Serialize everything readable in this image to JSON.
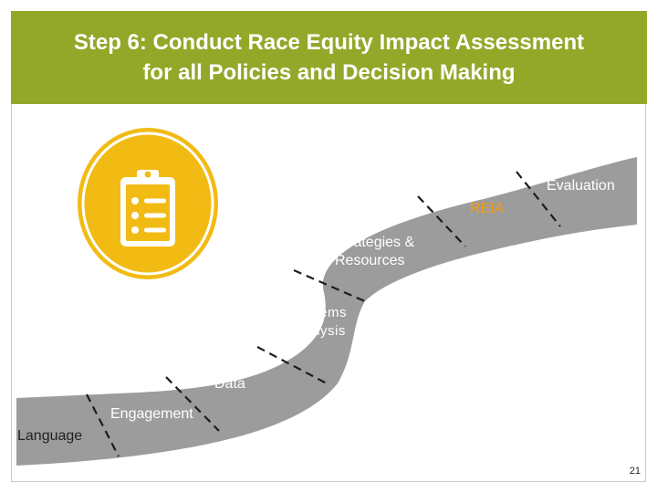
{
  "slide": {
    "title_line1": "Step 6: Conduct Race Equity Impact Assessment",
    "title_line2": "for all Policies and Decision Making",
    "page_number": "21"
  },
  "road_steps": {
    "language": "Language",
    "engagement": "Engagement",
    "data": "Data",
    "systems_line1": "Systems",
    "systems_line2": "Analysis",
    "strategies_line1": "Strategies &",
    "strategies_line2": "Resources",
    "reia": "REIA",
    "evaluation": "Evaluation"
  },
  "colors": {
    "title_bar": "#93a829",
    "road": "#9c9c9c",
    "icon_yellow": "#f2bb14",
    "highlight": "#f39c12"
  },
  "icon": "clipboard-checklist-icon"
}
